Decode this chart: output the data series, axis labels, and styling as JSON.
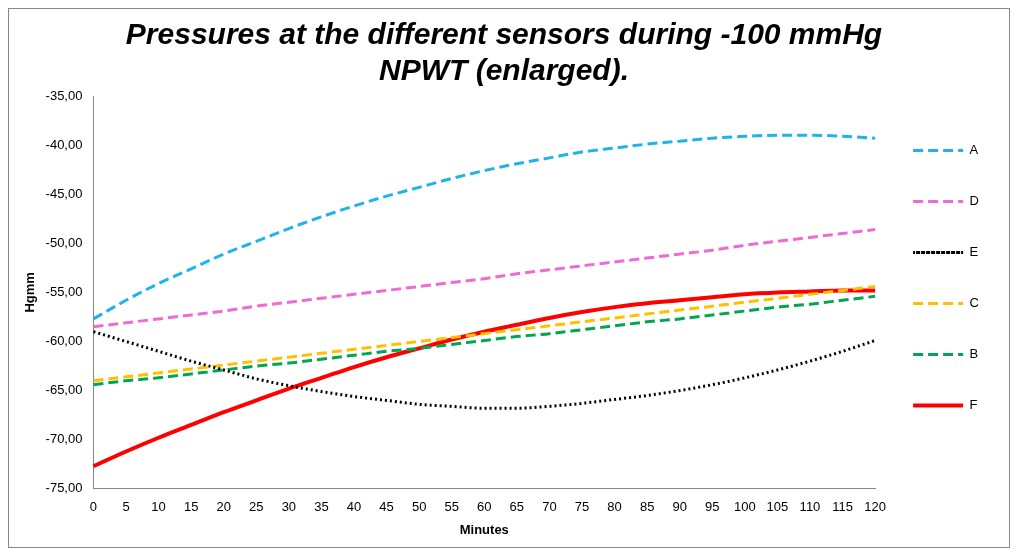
{
  "chart_data": {
    "type": "line",
    "title": "Pressures at the different sensors during -100 mmHg NPWT (enlarged).",
    "xlabel": "Minutes",
    "ylabel": "Hgmm",
    "categories": [
      "0",
      "5",
      "10",
      "15",
      "20",
      "25",
      "30",
      "35",
      "40",
      "45",
      "50",
      "55",
      "60",
      "65",
      "70",
      "75",
      "80",
      "85",
      "90",
      "95",
      "100",
      "105",
      "110",
      "115",
      "120"
    ],
    "series": [
      {
        "name": "A",
        "color": "#1eb4e8",
        "line_style": "dashed",
        "values": [
          -57.7,
          -55.8,
          -54.1,
          -52.6,
          -51.1,
          -49.8,
          -48.5,
          -47.3,
          -46.2,
          -45.2,
          -44.3,
          -43.4,
          -42.6,
          -41.9,
          -41.3,
          -40.7,
          -40.3,
          -39.9,
          -39.6,
          -39.3,
          -39.1,
          -39.0,
          -39.0,
          -39.1,
          -39.3
        ]
      },
      {
        "name": "D",
        "color": "#f06ad0",
        "line_style": "dashed",
        "values": [
          -58.5,
          -58.1,
          -57.7,
          -57.3,
          -56.9,
          -56.4,
          -56.0,
          -55.6,
          -55.2,
          -54.8,
          -54.4,
          -54.0,
          -53.6,
          -53.1,
          -52.7,
          -52.3,
          -51.9,
          -51.5,
          -51.1,
          -50.7,
          -50.2,
          -49.8,
          -49.4,
          -49.0,
          -48.6
        ]
      },
      {
        "name": "E",
        "color": "#000000",
        "line_style": "dotted",
        "values": [
          -59.0,
          -60.0,
          -61.0,
          -62.0,
          -62.9,
          -63.8,
          -64.5,
          -65.1,
          -65.6,
          -66.0,
          -66.4,
          -66.6,
          -66.8,
          -66.8,
          -66.6,
          -66.3,
          -65.9,
          -65.5,
          -65.0,
          -64.4,
          -63.7,
          -62.9,
          -62.0,
          -61.0,
          -59.9
        ]
      },
      {
        "name": "C",
        "color": "#ffc000",
        "line_style": "dashed",
        "values": [
          -64.0,
          -63.6,
          -63.2,
          -62.8,
          -62.4,
          -62.0,
          -61.6,
          -61.2,
          -60.8,
          -60.4,
          -60.0,
          -59.6,
          -59.2,
          -58.8,
          -58.4,
          -58.0,
          -57.6,
          -57.2,
          -56.8,
          -56.4,
          -56.0,
          -55.6,
          -55.2,
          -54.8,
          -54.4
        ]
      },
      {
        "name": "B",
        "color": "#00a650",
        "line_style": "dashed",
        "values": [
          -64.4,
          -64.0,
          -63.7,
          -63.3,
          -62.9,
          -62.5,
          -62.2,
          -61.8,
          -61.4,
          -61.0,
          -60.7,
          -60.3,
          -59.9,
          -59.5,
          -59.2,
          -58.8,
          -58.4,
          -58.0,
          -57.7,
          -57.3,
          -56.9,
          -56.5,
          -56.2,
          -55.8,
          -55.4
        ]
      },
      {
        "name": "F",
        "color": "#ff0000",
        "line_style": "solid",
        "values": [
          -72.7,
          -71.2,
          -69.8,
          -68.5,
          -67.2,
          -66.0,
          -64.8,
          -63.7,
          -62.6,
          -61.6,
          -60.7,
          -59.8,
          -59.0,
          -58.3,
          -57.6,
          -57.0,
          -56.5,
          -56.1,
          -55.8,
          -55.5,
          -55.2,
          -55.0,
          -54.9,
          -54.8,
          -54.8
        ]
      }
    ],
    "ylim": [
      -75,
      -35
    ],
    "yticks": [
      {
        "value": -75,
        "label": "-75,00"
      },
      {
        "value": -70,
        "label": "-70,00"
      },
      {
        "value": -65,
        "label": "-65,00"
      },
      {
        "value": -60,
        "label": "-60,00"
      },
      {
        "value": -55,
        "label": "-55,00"
      },
      {
        "value": -50,
        "label": "-50,00"
      },
      {
        "value": -45,
        "label": "-45,00"
      },
      {
        "value": -40,
        "label": "-40,00"
      },
      {
        "value": -35,
        "label": "-35,00"
      }
    ],
    "grid": false,
    "legend": "right",
    "marker": "none"
  }
}
